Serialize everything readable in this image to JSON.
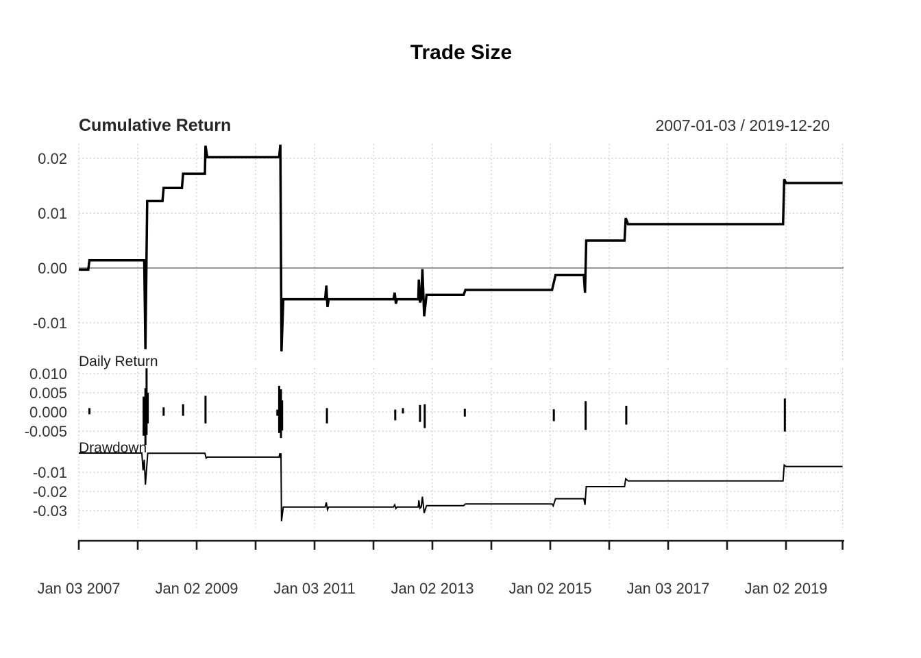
{
  "header": {
    "title": "Trade Size"
  },
  "x_axis": {
    "unit": "decimal_year",
    "range": [
      2007.0,
      2019.96
    ],
    "tick_years": [
      2007,
      2008,
      2009,
      2010,
      2011,
      2012,
      2013,
      2014,
      2015,
      2016,
      2017,
      2018,
      2019,
      2019.96
    ],
    "labels": [
      {
        "year": 2007.0,
        "label": "Jan 03 2007"
      },
      {
        "year": 2009.0,
        "label": "Jan 02 2009"
      },
      {
        "year": 2011.0,
        "label": "Jan 03 2011"
      },
      {
        "year": 2013.0,
        "label": "Jan 02 2013"
      },
      {
        "year": 2015.0,
        "label": "Jan 02 2015"
      },
      {
        "year": 2017.0,
        "label": "Jan 03 2017"
      },
      {
        "year": 2019.0,
        "label": "Jan 02 2019"
      }
    ]
  },
  "colors": {
    "line": "#000000",
    "grid": "#c4c4c4",
    "zero_line": "#969696",
    "text": "#333333",
    "axis": "#1a1a1a"
  },
  "chart_data": [
    {
      "type": "line",
      "title": "Cumulative Return",
      "date_range": "2007-01-03 / 2019-12-20",
      "ylim": [
        -0.0168,
        0.0227
      ],
      "zero_reference_line": true,
      "yticks": [
        {
          "v": 0.02,
          "label": "0.02"
        },
        {
          "v": 0.01,
          "label": "0.01"
        },
        {
          "v": 0.0,
          "label": "0.00"
        },
        {
          "v": -0.01,
          "label": "-0.01"
        }
      ],
      "points": [
        [
          2007.0,
          -0.0003
        ],
        [
          2007.16,
          -0.0003
        ],
        [
          2007.18,
          0.0014
        ],
        [
          2008.11,
          0.0014
        ],
        [
          2008.13,
          -0.0148
        ],
        [
          2008.16,
          0.0122
        ],
        [
          2008.42,
          0.0122
        ],
        [
          2008.44,
          0.0146
        ],
        [
          2008.75,
          0.0146
        ],
        [
          2008.77,
          0.0172
        ],
        [
          2009.14,
          0.0172
        ],
        [
          2009.15,
          0.0223
        ],
        [
          2009.18,
          0.0202
        ],
        [
          2010.4,
          0.0202
        ],
        [
          2010.42,
          0.0225
        ],
        [
          2010.44,
          -0.0152
        ],
        [
          2010.47,
          -0.0057
        ],
        [
          2011.18,
          -0.0057
        ],
        [
          2011.2,
          -0.0032
        ],
        [
          2011.22,
          -0.0071
        ],
        [
          2011.24,
          -0.0057
        ],
        [
          2012.34,
          -0.0057
        ],
        [
          2012.36,
          -0.0045
        ],
        [
          2012.38,
          -0.0065
        ],
        [
          2012.4,
          -0.0057
        ],
        [
          2012.76,
          -0.0057
        ],
        [
          2012.77,
          -0.0021
        ],
        [
          2012.79,
          -0.0063
        ],
        [
          2012.81,
          -0.0057
        ],
        [
          2012.83,
          -0.0002
        ],
        [
          2012.86,
          -0.0088
        ],
        [
          2012.9,
          -0.0049
        ],
        [
          2013.53,
          -0.0049
        ],
        [
          2013.56,
          -0.004
        ],
        [
          2015.03,
          -0.004
        ],
        [
          2015.09,
          -0.0013
        ],
        [
          2015.57,
          -0.0013
        ],
        [
          2015.59,
          -0.0045
        ],
        [
          2015.61,
          0.005
        ],
        [
          2016.26,
          0.005
        ],
        [
          2016.28,
          0.0091
        ],
        [
          2016.32,
          0.008
        ],
        [
          2018.95,
          0.008
        ],
        [
          2018.97,
          0.0162
        ],
        [
          2019.0,
          0.0155
        ],
        [
          2019.96,
          0.0155
        ]
      ]
    },
    {
      "type": "bar",
      "title": "Daily Return",
      "ylim": [
        -0.0084,
        0.0114
      ],
      "yticks": [
        {
          "v": 0.01,
          "label": "0.010"
        },
        {
          "v": 0.005,
          "label": "0.005"
        },
        {
          "v": 0.0,
          "label": "0.000"
        },
        {
          "v": -0.005,
          "label": "-0.005"
        }
      ],
      "spikes": [
        [
          2007.18,
          0.001,
          -0.0006
        ],
        [
          2008.1,
          0.004,
          -0.0062
        ],
        [
          2008.13,
          0.0062,
          -0.0086
        ],
        [
          2008.15,
          0.0114,
          -0.006
        ],
        [
          2008.17,
          0.005,
          -0.003
        ],
        [
          2008.44,
          0.0012,
          -0.001
        ],
        [
          2008.77,
          0.002,
          -0.001
        ],
        [
          2009.15,
          0.0042,
          -0.003
        ],
        [
          2010.37,
          0.0006,
          -0.001
        ],
        [
          2010.4,
          0.0068,
          -0.0055
        ],
        [
          2010.43,
          0.0059,
          -0.0068
        ],
        [
          2010.45,
          0.003,
          -0.0048
        ],
        [
          2011.21,
          0.001,
          -0.003
        ],
        [
          2012.37,
          0.0006,
          -0.0022
        ],
        [
          2012.5,
          0.001,
          -0.0004
        ],
        [
          2012.79,
          0.0018,
          -0.0026
        ],
        [
          2012.87,
          0.002,
          -0.0042
        ],
        [
          2013.55,
          0.0008,
          -0.0012
        ],
        [
          2015.06,
          0.0007,
          -0.0024
        ],
        [
          2015.6,
          0.0028,
          -0.0047
        ],
        [
          2016.29,
          0.0016,
          -0.0033
        ],
        [
          2018.98,
          0.0035,
          -0.0051
        ]
      ]
    },
    {
      "type": "line",
      "title": "Drawdown",
      "ylim": [
        -0.0393,
        0.0018
      ],
      "yticks": [
        {
          "v": -0.01,
          "label": "-0.01"
        },
        {
          "v": -0.02,
          "label": "-0.02"
        },
        {
          "v": -0.03,
          "label": "-0.03"
        }
      ],
      "points": [
        [
          2007.0,
          0.0
        ],
        [
          2008.07,
          0.0
        ],
        [
          2008.09,
          -0.009
        ],
        [
          2008.11,
          -0.0035
        ],
        [
          2008.13,
          -0.0165
        ],
        [
          2008.17,
          -0.0001
        ],
        [
          2009.14,
          -0.0001
        ],
        [
          2009.16,
          -0.0026
        ],
        [
          2009.18,
          -0.0021
        ],
        [
          2010.4,
          -0.0021
        ],
        [
          2010.41,
          -0.0001
        ],
        [
          2010.42,
          -0.0026
        ],
        [
          2010.43,
          -0.0001
        ],
        [
          2010.44,
          -0.0355
        ],
        [
          2010.47,
          -0.0281
        ],
        [
          2011.18,
          -0.0281
        ],
        [
          2011.2,
          -0.0257
        ],
        [
          2011.22,
          -0.0295
        ],
        [
          2011.24,
          -0.0281
        ],
        [
          2012.34,
          -0.0281
        ],
        [
          2012.36,
          -0.027
        ],
        [
          2012.38,
          -0.0289
        ],
        [
          2012.4,
          -0.0281
        ],
        [
          2012.76,
          -0.0281
        ],
        [
          2012.77,
          -0.0246
        ],
        [
          2012.79,
          -0.0288
        ],
        [
          2012.81,
          -0.0281
        ],
        [
          2012.83,
          -0.0227
        ],
        [
          2012.86,
          -0.0312
        ],
        [
          2012.9,
          -0.0274
        ],
        [
          2013.53,
          -0.0274
        ],
        [
          2013.56,
          -0.0265
        ],
        [
          2015.03,
          -0.0265
        ],
        [
          2015.05,
          -0.0275
        ],
        [
          2015.09,
          -0.0238
        ],
        [
          2015.57,
          -0.0238
        ],
        [
          2015.59,
          -0.027
        ],
        [
          2015.61,
          -0.0175
        ],
        [
          2016.26,
          -0.0175
        ],
        [
          2016.28,
          -0.0134
        ],
        [
          2016.32,
          -0.0145
        ],
        [
          2018.95,
          -0.0145
        ],
        [
          2018.97,
          -0.0063
        ],
        [
          2019.0,
          -0.007
        ],
        [
          2019.96,
          -0.007
        ]
      ]
    }
  ]
}
